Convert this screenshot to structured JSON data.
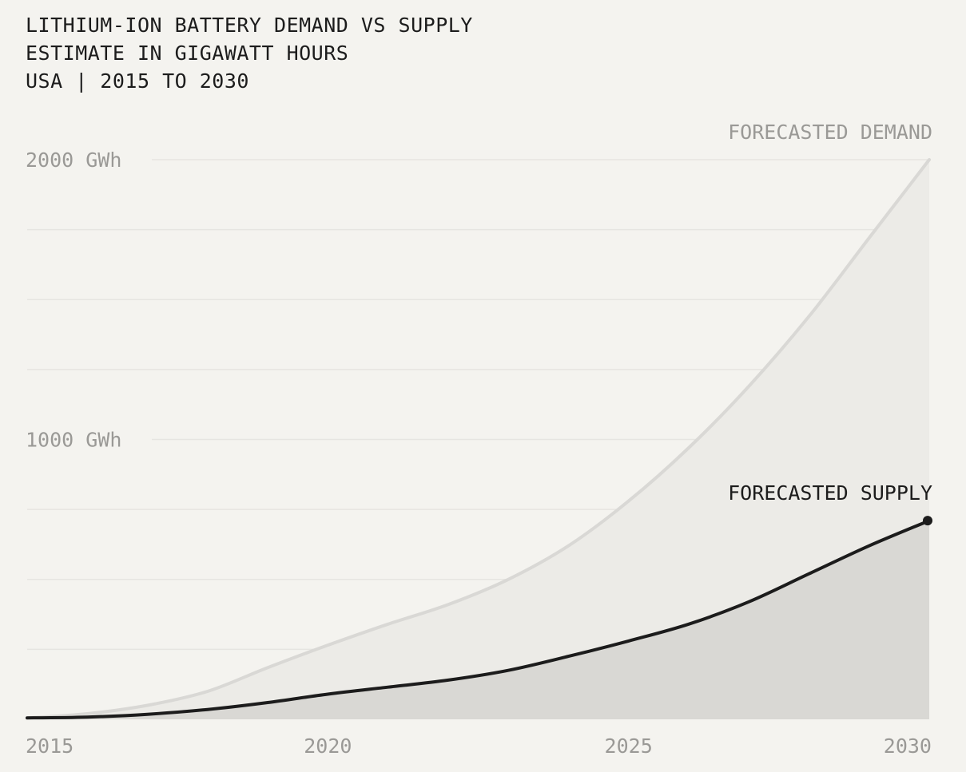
{
  "title_lines": [
    "LITHIUM-ION BATTERY DEMAND VS SUPPLY",
    "ESTIMATE IN GIGAWATT HOURS",
    "USA | 2015 TO 2030"
  ],
  "chart_data": {
    "type": "area",
    "x": [
      2015,
      2016,
      2017,
      2018,
      2019,
      2020,
      2021,
      2022,
      2023,
      2024,
      2025,
      2026,
      2027,
      2028,
      2029,
      2030
    ],
    "series": [
      {
        "name": "FORECASTED DEMAND",
        "values": [
          5,
          20,
          50,
          100,
          185,
          265,
          340,
          410,
          500,
          620,
          780,
          970,
          1190,
          1440,
          1720,
          2000
        ],
        "color": "#d9d8d5",
        "fill": "#ecebe7"
      },
      {
        "name": "FORECASTED SUPPLY",
        "values": [
          5,
          8,
          18,
          35,
          60,
          90,
          115,
          140,
          175,
          225,
          280,
          340,
          420,
          520,
          620,
          710
        ],
        "color": "#1c1c1c",
        "fill": "#d9d8d4"
      }
    ],
    "ylim": [
      0,
      2000
    ],
    "y_tick_labels": [
      {
        "value": 1000,
        "label": "1000 GWh"
      },
      {
        "value": 2000,
        "label": "2000 GWh"
      }
    ],
    "x_tick_labels": [
      {
        "value": 2015,
        "label": "2015"
      },
      {
        "value": 2020,
        "label": "2020"
      },
      {
        "value": 2025,
        "label": "2025"
      },
      {
        "value": 2030,
        "label": "2030"
      }
    ],
    "grid": true,
    "grid_step": 250
  }
}
